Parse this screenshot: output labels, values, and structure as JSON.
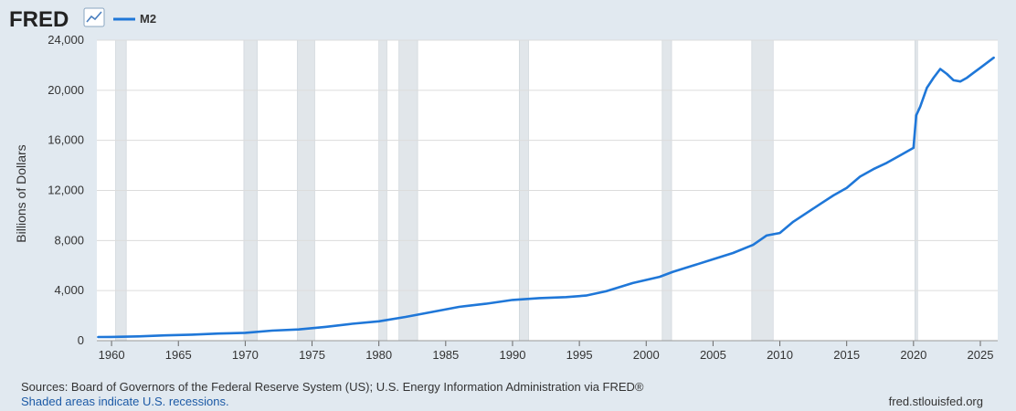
{
  "header": {
    "brand": "FRED",
    "brand_icon": "line-chart-icon",
    "legend_swatch_color": "#1f77d8"
  },
  "footer": {
    "sources": "Sources: Board of Governors of the Federal Reserve System (US); U.S. Energy Information Administration via FRED®",
    "recession_note": "Shaded areas indicate U.S. recessions.",
    "site": "fred.stlouisfed.org"
  },
  "colors": {
    "background": "#e1e9f0",
    "plot_background": "#ffffff",
    "line": "#1f77d8",
    "recession": "#e1e6ea",
    "grid": "#dcdcdc",
    "link": "#1c5aa6"
  },
  "chart_data": {
    "type": "line",
    "title": "",
    "xlabel": "",
    "ylabel": "Billions of Dollars",
    "xlim": [
      1958.9,
      1959.0
    ],
    "ylim": [
      0,
      24000
    ],
    "grid": true,
    "legend": "top-left",
    "xticks": [
      1960,
      1965,
      1970,
      1975,
      1980,
      1985,
      1990,
      1995,
      2000,
      2005,
      2010,
      2015,
      2020,
      2025
    ],
    "xtick_labels": [
      "1960",
      "1965",
      "1970",
      "1975",
      "1980",
      "1985",
      "1990",
      "1995",
      "2000",
      "2005",
      "2010",
      "2015",
      "2020",
      "2025"
    ],
    "yticks": [
      0,
      4000,
      8000,
      12000,
      16000,
      20000,
      24000
    ],
    "ytick_labels": [
      "0",
      "4,000",
      "8,000",
      "12,000",
      "16,000",
      "20,000",
      "24,000"
    ],
    "recessions": [
      [
        1960.3,
        1961.1
      ],
      [
        1969.9,
        1970.9
      ],
      [
        1973.9,
        1975.2
      ],
      [
        1980.0,
        1980.6
      ],
      [
        1981.5,
        1982.9
      ],
      [
        1990.5,
        1991.2
      ],
      [
        2001.2,
        2001.9
      ],
      [
        2007.9,
        2009.5
      ],
      [
        2020.1,
        2020.3
      ]
    ],
    "series": [
      {
        "name": "M2",
        "x": [
          1959.0,
          1960.0,
          1962.0,
          1964.0,
          1966.0,
          1968.0,
          1970.0,
          1972.0,
          1974.0,
          1976.0,
          1978.0,
          1980.0,
          1982.0,
          1984.0,
          1986.0,
          1988.0,
          1990.0,
          1992.0,
          1994.0,
          1995.5,
          1997.0,
          1999.0,
          2001.0,
          2002.0,
          2003.5,
          2005.0,
          2006.5,
          2008.0,
          2009.0,
          2010.0,
          2011.0,
          2012.0,
          2013.0,
          2014.0,
          2015.0,
          2016.0,
          2017.0,
          2018.0,
          2019.0,
          2020.0,
          2020.2,
          2020.5,
          2021.0,
          2021.5,
          2022.0,
          2022.5,
          2023.0,
          2023.5,
          2024.0,
          2024.5,
          2025.0,
          2025.5,
          2026.0
        ],
        "values": [
          290,
          300,
          340,
          420,
          480,
          570,
          630,
          800,
          900,
          1100,
          1350,
          1550,
          1900,
          2300,
          2700,
          2950,
          3250,
          3400,
          3480,
          3600,
          3950,
          4600,
          5100,
          5500,
          6000,
          6500,
          7000,
          7650,
          8400,
          8600,
          9500,
          10200,
          10900,
          11600,
          12200,
          13100,
          13700,
          14200,
          14800,
          15400,
          18000,
          18700,
          20200,
          21000,
          21700,
          21300,
          20800,
          20700,
          21000,
          21400,
          21800,
          22200,
          22600
        ]
      }
    ]
  }
}
